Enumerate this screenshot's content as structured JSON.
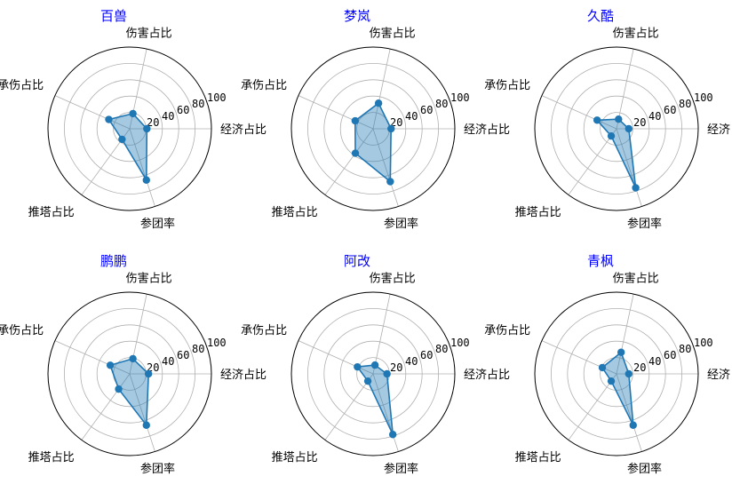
{
  "figure": {
    "title_color": "#0000ff",
    "series_color": "#1f77b4"
  },
  "chart_data": [
    {
      "type": "radar",
      "title": "百兽",
      "axes": [
        "经济占比",
        "伤害占比",
        "承伤占比",
        "推塔占比",
        "参团率"
      ],
      "rticks": [
        "20",
        "40",
        "60",
        "80",
        "100"
      ],
      "rlim": [
        0,
        100
      ],
      "grid": true,
      "values": [
        21,
        19,
        28,
        16,
        66
      ]
    },
    {
      "type": "radar",
      "title": "梦岚",
      "axes": [
        "经济占比",
        "伤害占比",
        "承伤占比",
        "推塔占比",
        "参团率"
      ],
      "rticks": [
        "20",
        "40",
        "60",
        "80",
        "100"
      ],
      "rlim": [
        0,
        100
      ],
      "grid": true,
      "values": [
        22,
        32,
        24,
        37,
        68
      ]
    },
    {
      "type": "radar",
      "title": "久酷",
      "axes": [
        "经济占比",
        "伤害占比",
        "承伤占比",
        "推塔占比",
        "参团率"
      ],
      "rticks": [
        "20",
        "40",
        "60",
        "80",
        "100"
      ],
      "rlim": [
        0,
        100
      ],
      "grid": true,
      "values": [
        15,
        12,
        26,
        11,
        76
      ]
    },
    {
      "type": "radar",
      "title": "鹏鹏",
      "axes": [
        "经济占比",
        "伤害占比",
        "承伤占比",
        "推塔占比",
        "参团率"
      ],
      "rticks": [
        "20",
        "40",
        "60",
        "80",
        "100"
      ],
      "rlim": [
        0,
        100
      ],
      "grid": true,
      "values": [
        23,
        19,
        26,
        23,
        66
      ]
    },
    {
      "type": "radar",
      "title": "阿改",
      "axes": [
        "经济占比",
        "伤害占比",
        "承伤占比",
        "推塔占比",
        "参团率"
      ],
      "rticks": [
        "20",
        "40",
        "60",
        "80",
        "100"
      ],
      "rlim": [
        0,
        100
      ],
      "grid": true,
      "values": [
        17,
        11,
        21,
        11,
        78
      ]
    },
    {
      "type": "radar",
      "title": "青枫",
      "axes": [
        "经济占比",
        "伤害占比",
        "承伤占比",
        "推塔占比",
        "参团率"
      ],
      "rticks": [
        "20",
        "40",
        "60",
        "80",
        "100"
      ],
      "rlim": [
        0,
        100
      ],
      "grid": true,
      "values": [
        15,
        27,
        19,
        11,
        66
      ]
    }
  ]
}
